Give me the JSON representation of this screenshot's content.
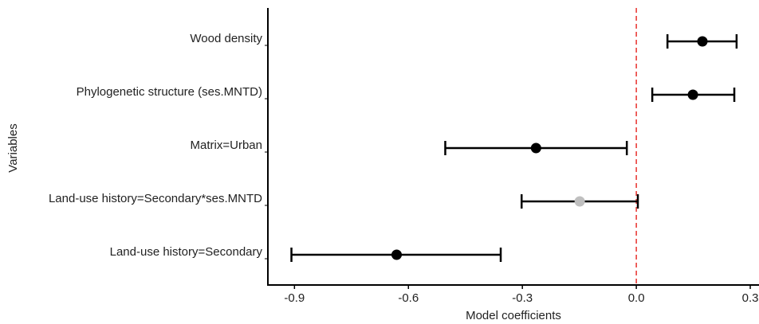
{
  "chart_data": {
    "type": "forest",
    "categories": [
      "Wood density",
      "Phylogenetic structure (ses.MNTD)",
      "Matrix=Urban",
      "Land-use history=Secondary*ses.MNTD",
      "Land-use history=Secondary"
    ],
    "values": [
      0.174,
      0.149,
      -0.264,
      -0.149,
      -0.631
    ],
    "lower": [
      0.082,
      0.042,
      -0.503,
      -0.302,
      -0.908
    ],
    "upper": [
      0.264,
      0.258,
      -0.025,
      0.004,
      -0.357
    ],
    "colors": [
      "#000000",
      "#000000",
      "#000000",
      "#bfbfbf",
      "#000000"
    ],
    "xlim": [
      -0.97,
      0.323
    ],
    "xticks": [
      -0.9,
      -0.6,
      -0.3,
      {
        "value": 0,
        "label": "0.0"
      },
      0.3
    ],
    "reference_line": 0,
    "reference_color": "#e8302c",
    "xlabel": "Model coefficients",
    "ylabel": "Variables"
  }
}
